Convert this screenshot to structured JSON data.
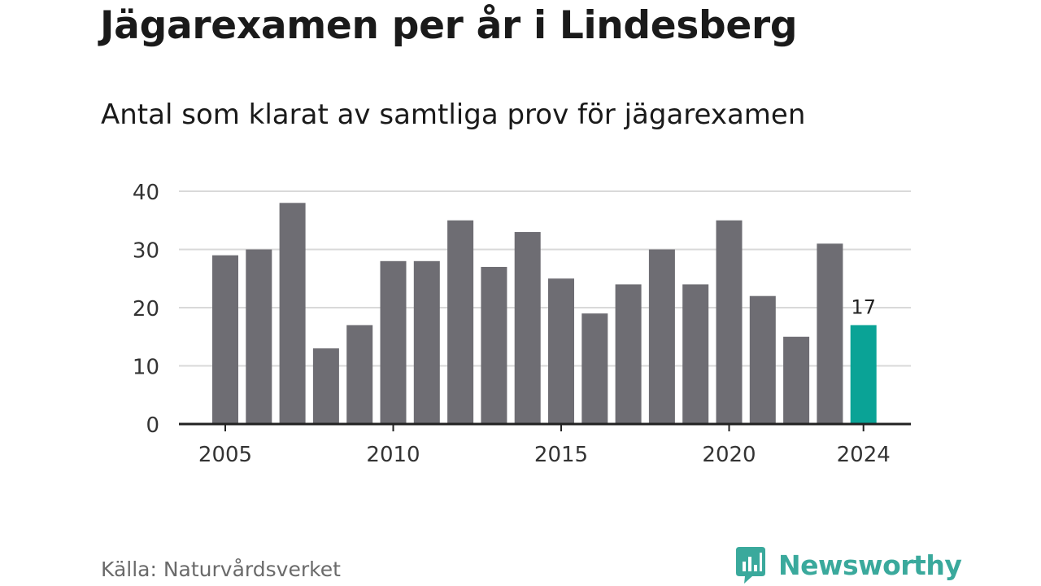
{
  "colors": {
    "bar": "#6e6d73",
    "highlight": "#0aa396",
    "grid": "#d9d9d9",
    "axis": "#222222",
    "brand": "#3aa99c"
  },
  "header": {
    "title": "Jägarexamen per år i Lindesberg",
    "subtitle": "Antal som klarat av samtliga prov för jägarexamen"
  },
  "footer": {
    "source": "Källa: Naturvårdsverket",
    "brand_name": "Newsworthy",
    "brand_icon": "newsworthy-logo-icon"
  },
  "chart_data": {
    "type": "bar",
    "title": "Jägarexamen per år i Lindesberg",
    "subtitle": "Antal som klarat av samtliga prov för jägarexamen",
    "categories": [
      2005,
      2006,
      2007,
      2008,
      2009,
      2010,
      2011,
      2012,
      2013,
      2014,
      2015,
      2016,
      2017,
      2018,
      2019,
      2020,
      2021,
      2022,
      2023,
      2024
    ],
    "values": [
      29,
      30,
      38,
      13,
      17,
      28,
      28,
      35,
      27,
      33,
      25,
      19,
      24,
      30,
      24,
      35,
      22,
      15,
      31,
      17
    ],
    "highlight_index": 19,
    "data_labels": [
      {
        "index": 19,
        "text": "17"
      }
    ],
    "x_ticks": [
      "2005",
      "2010",
      "2015",
      "2020",
      "2024"
    ],
    "y_ticks": [
      "0",
      "10",
      "20",
      "30",
      "40"
    ],
    "ylim": [
      0,
      40
    ],
    "grid": true,
    "legend": "none"
  }
}
